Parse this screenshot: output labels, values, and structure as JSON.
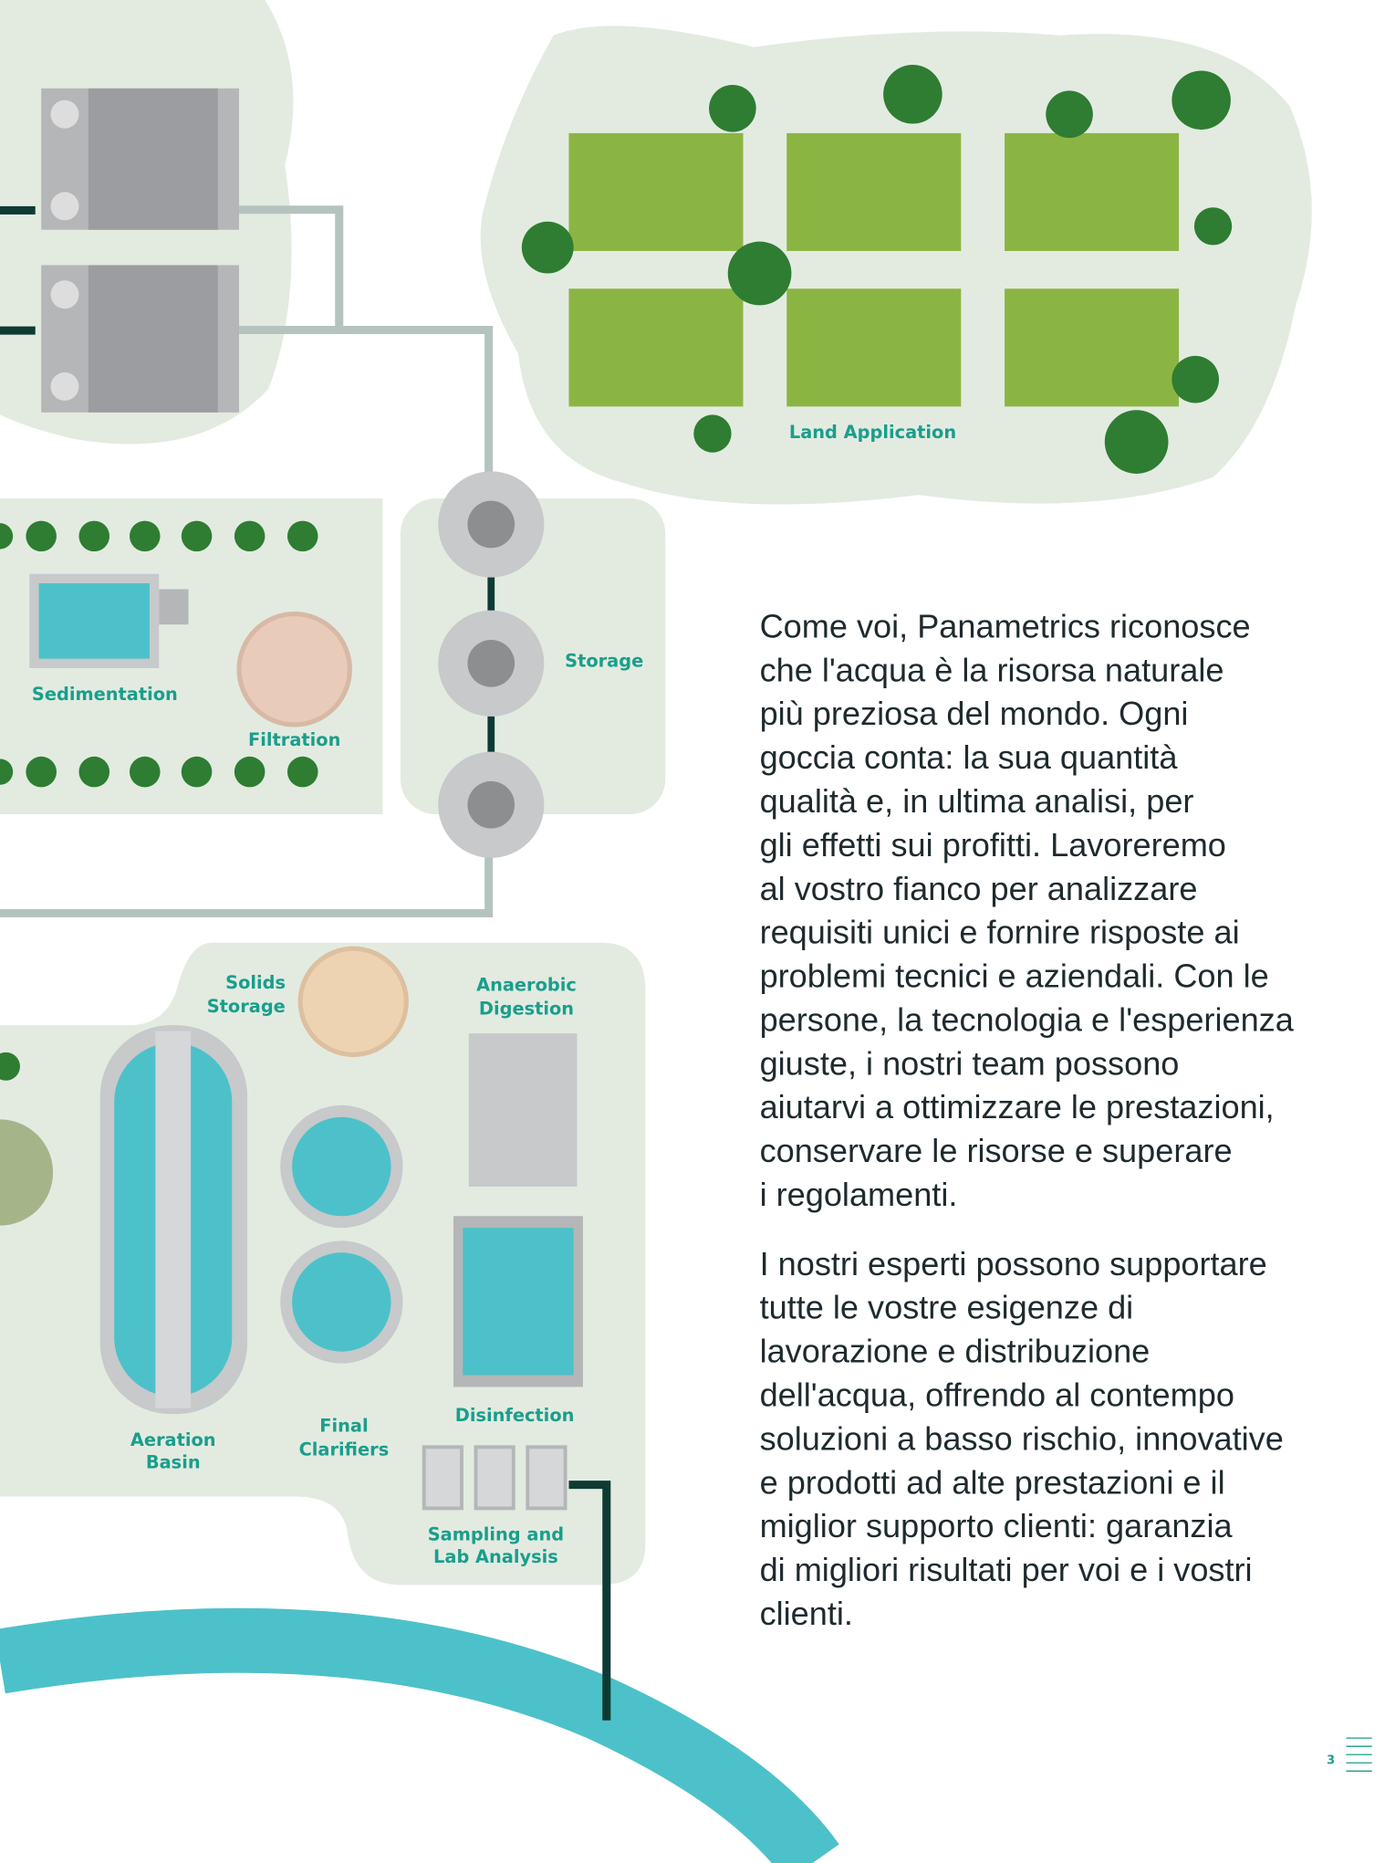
{
  "diagram": {
    "labels": {
      "land_application": "Land Application",
      "sedimentation": "Sedimentation",
      "filtration": "Filtration",
      "storage": "Storage",
      "solids_storage": [
        "Solids",
        "Storage"
      ],
      "anaerobic_digestion": [
        "Anaerobic",
        "Digestion"
      ],
      "aeration_basin": [
        "Aeration",
        "Basin"
      ],
      "final_clarifiers": [
        "Final",
        "Clarifiers"
      ],
      "disinfection": "Disinfection",
      "sampling": [
        "Sampling and",
        "Lab Analysis"
      ]
    }
  },
  "body": {
    "paragraphs": [
      [
        "Come voi, Panametrics riconosce",
        "che l'acqua è la risorsa naturale",
        "più preziosa del mondo. Ogni",
        "goccia conta: la sua quantità",
        "qualità e, in ultima analisi, per",
        "gli effetti sui profitti. Lavoreremo",
        "al vostro fianco per analizzare",
        "requisiti unici e fornire risposte ai",
        "problemi tecnici e aziendali. Con le",
        "persone, la tecnologia e l'esperienza",
        "giuste, i nostri team possono",
        "aiutarvi a ottimizzare le prestazioni,",
        "conservare le risorse e superare",
        "i regolamenti."
      ],
      [
        "I nostri esperti possono supportare",
        "tutte le vostre esigenze di",
        "lavorazione e distribuzione",
        "dell'acqua, offrendo al contempo",
        "soluzioni a basso rischio, innovative",
        "e prodotti ad alte prestazioni e il",
        "miglior supporto clienti: garanzia",
        "di migliori risultati per voi e i vostri",
        "clienti."
      ]
    ]
  },
  "footer": {
    "page_number": "3"
  }
}
